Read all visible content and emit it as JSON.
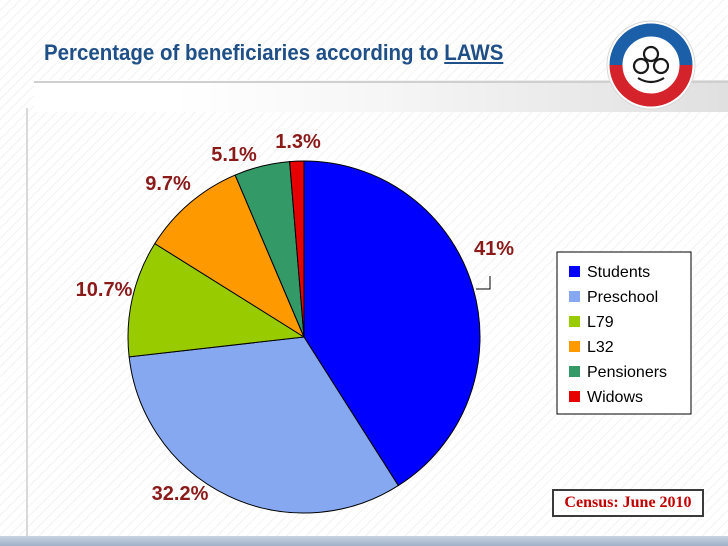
{
  "slide": {
    "title": "Percentage of beneficiaries according to ",
    "title_emphasis": "LAWS",
    "footnote": "Census: June 2010"
  },
  "colors": {
    "title": "#1f4f87",
    "labels": "#8b1a1a",
    "footnote": "#c00000"
  },
  "chart_data": {
    "type": "pie",
    "categories": [
      "Students",
      "Preschool",
      "L79",
      "L32",
      "Pensioners",
      "Widows"
    ],
    "values": [
      41,
      32.2,
      10.7,
      9.7,
      5.1,
      1.3
    ],
    "data_labels": [
      "41%",
      "32.2%",
      "10.7%",
      "9.7%",
      "5.1%",
      "1.3%"
    ],
    "colors": [
      "#0000ff",
      "#86a8f0",
      "#99cc00",
      "#ff9900",
      "#339966",
      "#e60000"
    ],
    "start": "12 o'clock",
    "direction": "clockwise",
    "legend_position": "right"
  }
}
